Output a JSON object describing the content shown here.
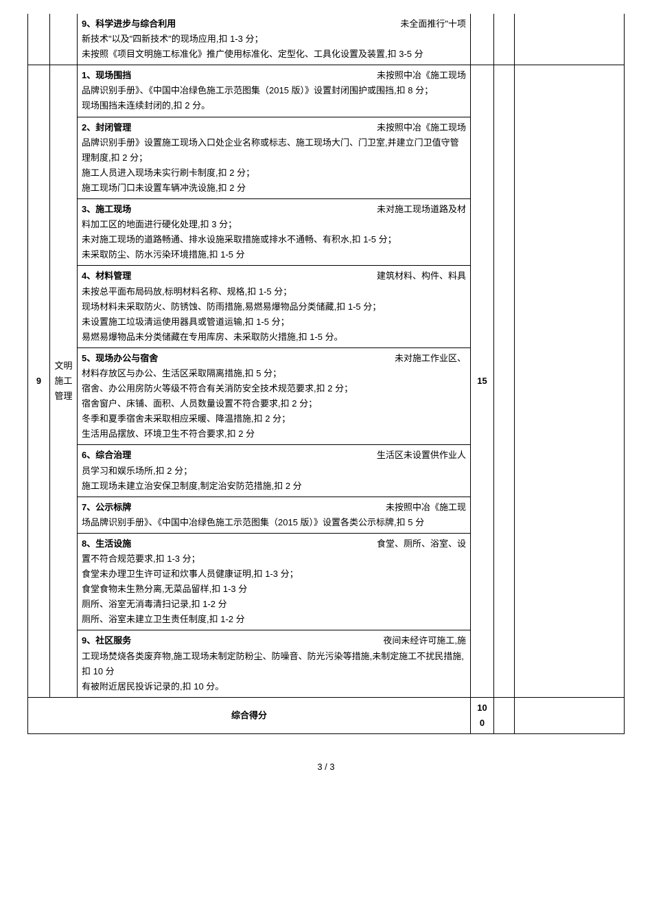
{
  "row_partial": {
    "title": "9、科学进步与综合利用",
    "right": "未全面推行\"十项",
    "body": "新技术\"以及\"四新技术\"的现场应用,扣 1-3 分；\n未按照《项目文明施工标准化》推广使用标准化、定型化、工具化设置及装置,扣 3-5 分"
  },
  "section": {
    "idx": "9",
    "cat": "文明\n施工\n管理",
    "score_mid": "15",
    "items": [
      {
        "title": "1、现场围挡",
        "right": "未按照中冶《施工现场",
        "body": "品牌识别手册》、《中国中冶绿色施工示范图集（2015 版）》设置封闭围护或围挡,扣 8 分；\n现场围挡未连续封闭的,扣 2 分。"
      },
      {
        "title": "2、封闭管理",
        "right": "未按照中冶《施工现场",
        "body": "品牌识别手册》设置施工现场入口处企业名称或标志、施工现场大门、门卫室,并建立门卫值守管理制度,扣 2 分；\n施工人员进入现场未实行刷卡制度,扣 2 分；\n施工现场门口未设置车辆冲洗设施,扣 2 分"
      },
      {
        "title": "3、施工现场",
        "right": "未对施工现场道路及材",
        "body": "料加工区的地面进行硬化处理,扣 3 分；\n未对施工现场的道路畅通、排水设施采取措施或排水不通畅、有积水,扣 1-5 分；\n未采取防尘、防水污染环境措施,扣 1-5 分"
      },
      {
        "title": "4、材料管理",
        "right": "建筑材料、构件、料具",
        "body": "未按总平面布局码放,标明材料名称、规格,扣 1-5 分；\n现场材料未采取防火、防锈蚀、防雨措施,易燃易爆物品分类储藏,扣 1-5 分；\n未设置施工垃圾清运使用器具或管道运输,扣 1-5 分；\n易燃易爆物品未分类储藏在专用库房、未采取防火措施,扣 1-5 分。"
      },
      {
        "title": "5、现场办公与宿舍",
        "right": "未对施工作业区、",
        "body": "材料存放区与办公、生活区采取隔离措施,扣 5 分；\n宿舍、办公用房防火等级不符合有关消防安全技术规范要求,扣 2 分；\n宿舍窗户、床铺、面积、人员数量设置不符合要求,扣 2 分；\n冬季和夏季宿舍未采取相应采暖、降温措施,扣 2 分；\n生活用品摆放、环境卫生不符合要求,扣 2 分"
      },
      {
        "title": "6、综合治理",
        "right": "生活区未设置供作业人",
        "body": "员学习和娱乐场所,扣 2 分；\n施工现场未建立治安保卫制度,制定治安防范措施,扣 2 分"
      },
      {
        "title": "7、公示标牌",
        "right": "未按照中冶《施工现",
        "body": "场品牌识别手册》、《中国中冶绿色施工示范图集（2015 版）》设置各类公示标牌,扣 5 分"
      },
      {
        "title": "8、生活设施",
        "right": "食堂、厕所、浴室、设",
        "body": "置不符合规范要求,扣 1-3 分；\n食堂未办理卫生许可证和炊事人员健康证明,扣 1-3 分；\n食堂食物未生熟分离,无菜品留样,扣 1-3 分\n厕所、浴室无消毒清扫记录,扣 1-2 分\n厕所、浴室未建立卫生责任制度,扣 1-2 分"
      },
      {
        "title": "9、社区服务",
        "right": "夜间未经许可施工,施",
        "body": "工现场焚烧各类废弃物,施工现场未制定防粉尘、防噪音、防光污染等措施,未制定施工不扰民措施,扣 10 分\n有被附近居民投诉记录的,扣 10 分。"
      }
    ]
  },
  "total": {
    "label": "综合得分",
    "score": "10\n0"
  },
  "page": "3 / 3"
}
